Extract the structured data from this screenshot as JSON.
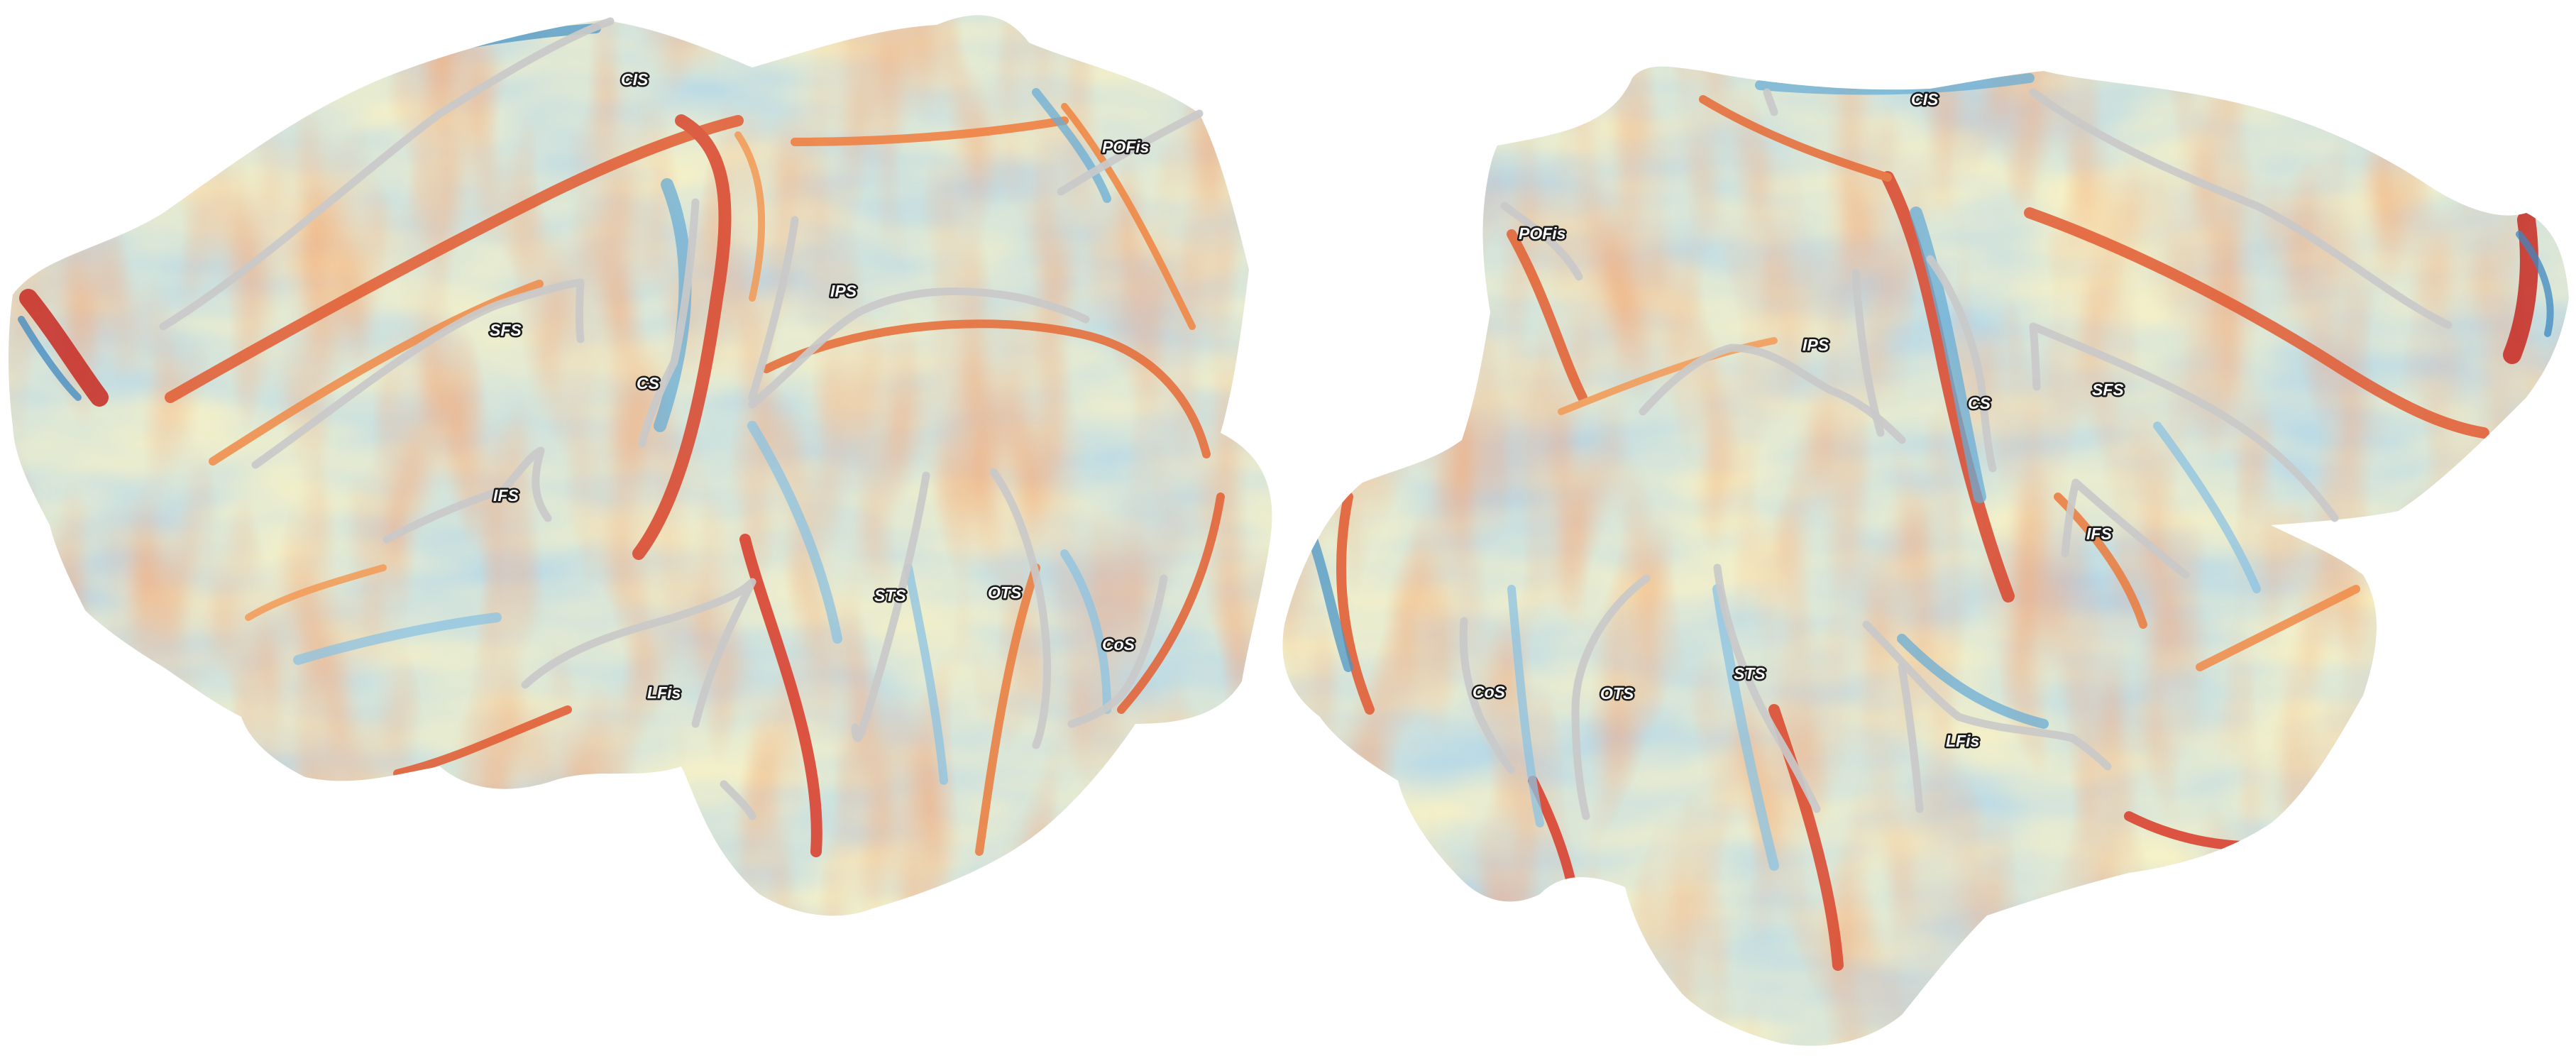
{
  "left_hemisphere": {
    "labels": {
      "cis": "CIS",
      "pofis": "POFis",
      "ips": "IPS",
      "sfs": "SFS",
      "cs": "CS",
      "ifs": "IFS",
      "sts": "STS",
      "ots": "OTS",
      "cos": "CoS",
      "lfis": "LFis"
    }
  },
  "right_hemisphere": {
    "labels": {
      "cis": "CIS",
      "pofis": "POFis",
      "ips": "IPS",
      "cs": "CS",
      "sfs": "SFS",
      "ifs": "IFS",
      "cos": "CoS",
      "ots": "OTS",
      "sts": "STS",
      "lfis": "LFis"
    }
  },
  "colors": {
    "low": "#2c7bb6",
    "mid_low": "#abd9e9",
    "neutral": "#ffffbf",
    "mid_high": "#fdae61",
    "high": "#d7191c",
    "sulcus_line": "#c9c9c9"
  }
}
